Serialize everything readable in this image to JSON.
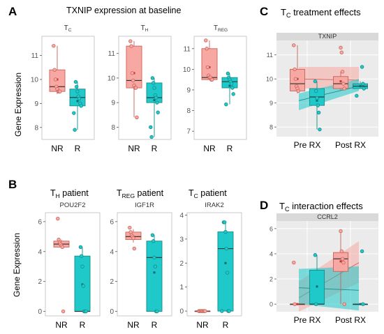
{
  "panel_letters": [
    "A",
    "B",
    "C",
    "D"
  ],
  "headings": {
    "A": "TXNIP expression at baseline",
    "B1": {
      "main": "T",
      "sub": "H",
      "rest": " patient"
    },
    "B2": {
      "main": "T",
      "sub": "REG",
      "rest": " patient"
    },
    "B3": {
      "main": "T",
      "sub": "C",
      "rest": " patient"
    },
    "C": {
      "main": "T",
      "sub": "C",
      "rest": " treatment effects"
    },
    "D": {
      "main": "T",
      "sub": "C",
      "rest": " interaction effects"
    }
  },
  "colors": {
    "nr_fill": "#f8a8a2",
    "nr_edge": "#c9615a",
    "r_fill": "#1fc9c9",
    "r_edge": "#148c8c",
    "strip": "#d9d9d9",
    "panel_bg": "#ebebeb",
    "grid": "#ffffff"
  },
  "y_axis_label": "Gene Expression",
  "chart_data": [
    {
      "id": "A1",
      "type": "box",
      "title": {
        "main": "T",
        "sub": "C"
      },
      "categories": [
        "NR",
        "R"
      ],
      "ylim": [
        7.5,
        11.8
      ],
      "yticks": [
        8,
        9,
        10,
        11
      ],
      "boxes": [
        {
          "group": "NR",
          "q1": 9.5,
          "median": 9.7,
          "q3": 10.4,
          "whisker_low": 9.4,
          "whisker_high": 11.4,
          "mean": 10.0
        },
        {
          "group": "R",
          "q1": 8.9,
          "median": 9.25,
          "q3": 9.6,
          "whisker_low": 7.9,
          "whisker_high": 9.9,
          "mean": 9.1
        }
      ],
      "points": [
        {
          "group": "NR",
          "y": [
            11.4,
            10.4,
            10.0,
            9.7,
            9.6,
            9.5,
            9.5,
            9.5
          ]
        },
        {
          "group": "R",
          "y": [
            9.9,
            9.7,
            9.5,
            9.3,
            9.2,
            9.0,
            8.9,
            8.6,
            7.9
          ]
        }
      ]
    },
    {
      "id": "A2",
      "type": "box",
      "title": {
        "main": "T",
        "sub": "H"
      },
      "categories": [
        "NR",
        "R"
      ],
      "ylim": [
        7.5,
        11.7
      ],
      "yticks": [
        8,
        9,
        10,
        11
      ],
      "boxes": [
        {
          "group": "NR",
          "q1": 9.6,
          "median": 9.9,
          "q3": 11.3,
          "whisker_low": 8.4,
          "whisker_high": 11.5,
          "mean": 10.2
        },
        {
          "group": "R",
          "q1": 9.0,
          "median": 9.2,
          "q3": 9.8,
          "whisker_low": 7.6,
          "whisker_high": 10.0,
          "mean": 9.1
        }
      ],
      "points": [
        {
          "group": "NR",
          "y": [
            11.5,
            11.3,
            10.2,
            9.9,
            9.7,
            9.6,
            9.6,
            8.4
          ]
        },
        {
          "group": "R",
          "y": [
            10.0,
            9.8,
            9.6,
            9.3,
            9.2,
            9.0,
            8.6,
            8.0,
            7.6
          ]
        }
      ]
    },
    {
      "id": "A3",
      "type": "box",
      "title": {
        "main": "T",
        "sub": "REG"
      },
      "categories": [
        "NR",
        "R"
      ],
      "ylim": [
        6.6,
        11.6
      ],
      "yticks": [
        7,
        8,
        9,
        10,
        11
      ],
      "boxes": [
        {
          "group": "NR",
          "q1": 9.5,
          "median": 9.6,
          "q3": 11.0,
          "whisker_low": 9.5,
          "whisker_high": 11.4,
          "mean": 10.1
        },
        {
          "group": "R",
          "q1": 9.1,
          "median": 9.4,
          "q3": 9.6,
          "whisker_low": 8.3,
          "whisker_high": 9.8,
          "mean": 9.2
        }
      ],
      "points": [
        {
          "group": "NR",
          "y": [
            11.4,
            11.0,
            10.1,
            9.7,
            9.6,
            9.6,
            9.5,
            9.5
          ]
        },
        {
          "group": "R",
          "y": [
            9.8,
            9.6,
            9.5,
            9.4,
            9.3,
            9.1,
            8.8,
            8.3
          ]
        }
      ]
    },
    {
      "id": "B1",
      "type": "box",
      "strip": "POU2F2",
      "categories": [
        "NR",
        "R"
      ],
      "ylim": [
        -0.3,
        6.6
      ],
      "yticks": [
        0,
        2,
        4,
        6
      ],
      "boxes": [
        {
          "group": "NR",
          "q1": 4.3,
          "median": 4.5,
          "q3": 4.7,
          "whisker_low": 4.2,
          "whisker_high": 4.8,
          "mean": 4.4
        },
        {
          "group": "R",
          "q1": 0.0,
          "median": 0.0,
          "q3": 3.7,
          "whisker_low": 0.0,
          "whisker_high": 4.3,
          "mean": 1.8
        }
      ],
      "points": [
        {
          "group": "NR",
          "y": [
            6.2,
            4.8,
            4.6,
            4.5,
            4.4,
            4.3,
            0.0
          ]
        },
        {
          "group": "R",
          "y": [
            4.3,
            3.7,
            3.0,
            1.7,
            0.0,
            0.0,
            0.0
          ]
        }
      ]
    },
    {
      "id": "B2",
      "type": "box",
      "strip": "IGF1R",
      "categories": [
        "NR",
        "R"
      ],
      "ylim": [
        -0.3,
        6.6
      ],
      "yticks": [
        0,
        2,
        4,
        6
      ],
      "boxes": [
        {
          "group": "NR",
          "q1": 4.8,
          "median": 5.0,
          "q3": 5.3,
          "whisker_low": 4.6,
          "whisker_high": 5.5,
          "mean": 5.0
        },
        {
          "group": "R",
          "q1": 0.0,
          "median": 3.6,
          "q3": 4.7,
          "whisker_low": 0.0,
          "whisker_high": 5.1,
          "mean": 2.6
        }
      ],
      "points": [
        {
          "group": "NR",
          "y": [
            5.6,
            5.3,
            5.1,
            5.0,
            4.9,
            4.2
          ]
        },
        {
          "group": "R",
          "y": [
            5.1,
            4.7,
            3.6,
            3.0,
            0.0,
            0.0
          ]
        }
      ]
    },
    {
      "id": "B3",
      "type": "box",
      "strip": "IRAK2",
      "categories": [
        "NR",
        "R"
      ],
      "ylim": [
        -0.2,
        4.1
      ],
      "yticks": [
        0,
        1,
        2,
        3,
        4
      ],
      "boxes": [
        {
          "group": "NR",
          "q1": 0.0,
          "median": 0.0,
          "q3": 0.0,
          "whisker_low": 0.0,
          "whisker_high": 0.0,
          "mean": 0.0
        },
        {
          "group": "R",
          "q1": 0.0,
          "median": 2.6,
          "q3": 3.3,
          "whisker_low": 0.0,
          "whisker_high": 3.7,
          "mean": 2.0
        }
      ],
      "points": [
        {
          "group": "NR",
          "y": [
            0,
            0,
            0,
            0,
            0,
            0,
            0,
            0
          ]
        },
        {
          "group": "R",
          "y": [
            3.7,
            3.7,
            3.3,
            2.6,
            1.6,
            0.0,
            0.0,
            0.0
          ]
        }
      ]
    },
    {
      "id": "C",
      "type": "box+interaction",
      "strip": "TXNIP",
      "categories": [
        "Pre RX",
        "Post RX"
      ],
      "ylim": [
        7.6,
        11.6
      ],
      "yticks": [
        8,
        9,
        10,
        11
      ],
      "boxes": [
        {
          "category": "Pre RX",
          "group": "NR",
          "q1": 9.5,
          "median": 9.8,
          "q3": 10.4,
          "whisker_low": 9.4,
          "whisker_high": 11.4,
          "mean": 10.0
        },
        {
          "category": "Pre RX",
          "group": "R",
          "q1": 8.9,
          "median": 9.25,
          "q3": 9.6,
          "whisker_low": 7.9,
          "whisker_high": 9.9,
          "mean": 9.1
        },
        {
          "category": "Post RX",
          "group": "NR",
          "q1": 9.6,
          "median": 9.8,
          "q3": 10.1,
          "whisker_low": 9.5,
          "whisker_high": 10.3,
          "mean": 9.9
        },
        {
          "category": "Post RX",
          "group": "R",
          "q1": 9.6,
          "median": 9.7,
          "q3": 9.8,
          "whisker_low": 9.6,
          "whisker_high": 9.9,
          "mean": 9.7
        }
      ],
      "points": [
        {
          "category": "Pre RX",
          "group": "NR",
          "y": [
            11.4,
            10.4,
            10.0,
            9.7,
            9.6,
            9.5
          ]
        },
        {
          "category": "Pre RX",
          "group": "R",
          "y": [
            9.9,
            9.5,
            9.2,
            8.9,
            8.6,
            7.9
          ]
        },
        {
          "category": "Post RX",
          "group": "NR",
          "y": [
            11.3,
            11.1,
            10.3,
            9.8,
            9.6
          ]
        },
        {
          "category": "Post RX",
          "group": "R",
          "y": [
            10.5,
            9.8,
            9.6,
            9.3
          ]
        }
      ],
      "bands": [
        {
          "group": "NR",
          "y_low": [
            9.6,
            9.6
          ],
          "y_high": [
            10.5,
            10.5
          ],
          "y_mid": [
            10.0,
            9.95
          ]
        },
        {
          "group": "R",
          "y_low": [
            8.7,
            9.5
          ],
          "y_high": [
            9.4,
            10.0
          ],
          "y_mid": [
            9.1,
            9.7
          ]
        }
      ]
    },
    {
      "id": "D",
      "type": "box+interaction",
      "strip": "CCRL2",
      "categories": [
        "Pre RX",
        "Post RX"
      ],
      "ylim": [
        -0.6,
        6.6
      ],
      "yticks": [
        0,
        2,
        4,
        6
      ],
      "boxes": [
        {
          "category": "Pre RX",
          "group": "NR",
          "q1": 0.0,
          "median": 0.0,
          "q3": 0.0,
          "whisker_low": 0.0,
          "whisker_high": 0.0,
          "mean": 0.0
        },
        {
          "category": "Pre RX",
          "group": "R",
          "q1": 0.0,
          "median": 0.0,
          "q3": 2.7,
          "whisker_low": 0.0,
          "whisker_high": 3.9,
          "mean": 1.4
        },
        {
          "category": "Post RX",
          "group": "NR",
          "q1": 2.6,
          "median": 3.6,
          "q3": 4.1,
          "whisker_low": 0.0,
          "whisker_high": 5.8,
          "mean": 3.4
        },
        {
          "category": "Post RX",
          "group": "R",
          "q1": 0.0,
          "median": 0.0,
          "q3": 0.0,
          "whisker_low": 0.0,
          "whisker_high": 0.0,
          "mean": 0.0
        }
      ],
      "points": [
        {
          "category": "Pre RX",
          "group": "NR",
          "y": [
            3.3,
            0.0
          ]
        },
        {
          "category": "Pre RX",
          "group": "R",
          "y": [
            3.9,
            0.0
          ]
        },
        {
          "category": "Post RX",
          "group": "NR",
          "y": [
            5.8,
            4.2,
            3.6,
            3.3,
            0.0
          ]
        },
        {
          "category": "Post RX",
          "group": "R",
          "y": [
            4.2,
            0.0
          ]
        }
      ],
      "bands": [
        {
          "group": "NR",
          "y_low": [
            -0.8,
            1.7
          ],
          "y_high": [
            1.8,
            5.0
          ],
          "y_mid": [
            0.5,
            3.3
          ]
        },
        {
          "group": "R",
          "y_low": [
            0.0,
            -0.5
          ],
          "y_high": [
            2.8,
            3.0
          ],
          "y_mid": [
            1.3,
            1.1
          ]
        }
      ]
    }
  ]
}
